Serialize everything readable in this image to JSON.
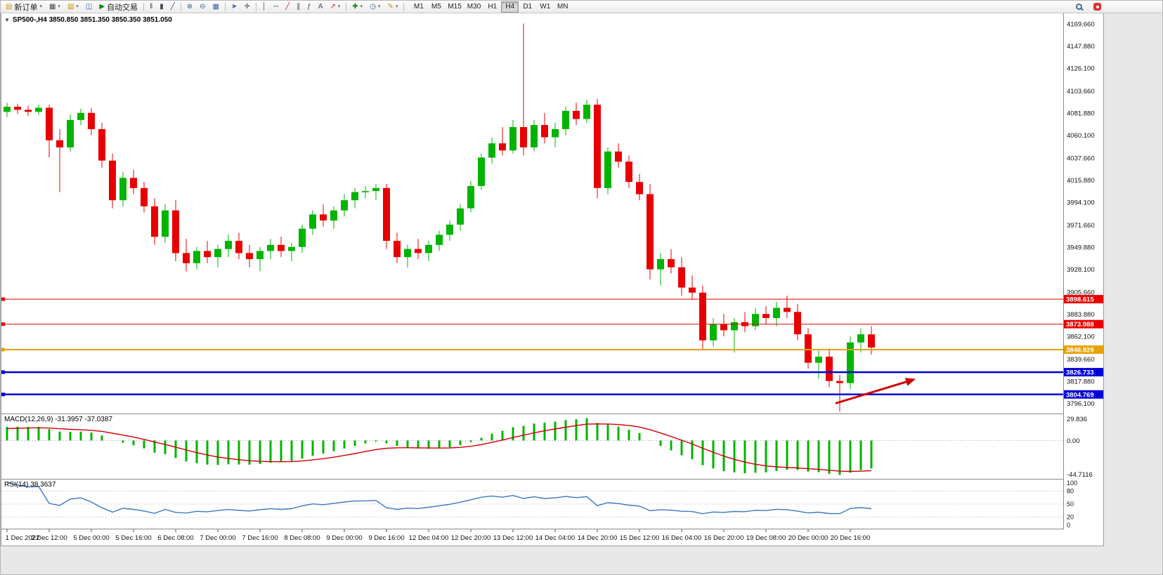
{
  "toolbar": {
    "new_order_label": "新订单",
    "auto_trading_label": "自动交易",
    "caret": "▾",
    "timeframes": [
      "M1",
      "M5",
      "M15",
      "M30",
      "H1",
      "H4",
      "D1",
      "W1",
      "MN"
    ],
    "active_timeframe": "H4"
  },
  "icons": {
    "collapse": "▼",
    "new_order": "▤",
    "new_chart": "▦",
    "profiles": "▧",
    "market_watch": "◫",
    "auto_trading_play": "▶",
    "bar_chart": "‖",
    "candlestick_chart": "▮",
    "line_chart": "╱",
    "zoom_in": "⊕",
    "zoom_out": "⊖",
    "tile_windows": "▦",
    "cursor": "➤",
    "crosshair": "✛",
    "vertical_line": "│",
    "horizontal_line": "─",
    "trendline": "╱",
    "channel": "∥",
    "fibonacci": "ƒ",
    "text_tool": "A",
    "arrows_tool": "↗",
    "indicators": "✚",
    "periods": "◷",
    "templates": "✎"
  },
  "chart": {
    "corner_label": "SP500-,H4 3850.850 3851.350 3850.350 3851.050"
  },
  "chart_data": {
    "type": "candlestick",
    "symbol": "SP500-",
    "timeframe": "H4",
    "current_bar": {
      "open": 3850.85,
      "high": 3851.35,
      "low": 3850.35,
      "close": 3851.05
    },
    "y_range": [
      3786,
      4180
    ],
    "price_axis_labels": [
      "4169.660",
      "4147.880",
      "4126.100",
      "4103.660",
      "4081.880",
      "4060.100",
      "4037.660",
      "4015.880",
      "3994.100",
      "3971.660",
      "3949.880",
      "3928.100",
      "3905.660",
      "3883.880",
      "3862.100",
      "3839.660",
      "3817.880",
      "3796.100"
    ],
    "time_axis_labels": [
      "1 Dec 2022",
      "2 Dec 12:00",
      "5 Dec 00:00",
      "5 Dec 16:00",
      "6 Dec 08:00",
      "7 Dec 00:00",
      "7 Dec 16:00",
      "8 Dec 08:00",
      "9 Dec 00:00",
      "9 Dec 16:00",
      "12 Dec 04:00",
      "12 Dec 20:00",
      "13 Dec 12:00",
      "14 Dec 04:00",
      "14 Dec 20:00",
      "15 Dec 12:00",
      "16 Dec 04:00",
      "16 Dec 20:00",
      "19 Dec 08:00",
      "20 Dec 00:00",
      "20 Dec 16:00"
    ],
    "label_every_n_bars": 4,
    "colors": {
      "up": "#00B400",
      "down": "#E80000",
      "background": "#FFFFFF"
    },
    "candles": [
      [
        4083,
        4092,
        4078,
        4088
      ],
      [
        4088,
        4091,
        4081,
        4085
      ],
      [
        4085,
        4089,
        4079,
        4083
      ],
      [
        4083,
        4090,
        4080,
        4087
      ],
      [
        4087,
        4090,
        4038,
        4055
      ],
      [
        4055,
        4066,
        4004,
        4048
      ],
      [
        4048,
        4080,
        4044,
        4075
      ],
      [
        4075,
        4086,
        4070,
        4082
      ],
      [
        4082,
        4087,
        4060,
        4066
      ],
      [
        4066,
        4072,
        4028,
        4035
      ],
      [
        4035,
        4042,
        3988,
        3996
      ],
      [
        3996,
        4024,
        3990,
        4018
      ],
      [
        4018,
        4026,
        4002,
        4008
      ],
      [
        4008,
        4014,
        3984,
        3990
      ],
      [
        3990,
        3998,
        3952,
        3960
      ],
      [
        3960,
        3992,
        3954,
        3986
      ],
      [
        3986,
        3996,
        3936,
        3944
      ],
      [
        3944,
        3958,
        3926,
        3934
      ],
      [
        3934,
        3950,
        3928,
        3946
      ],
      [
        3946,
        3956,
        3934,
        3940
      ],
      [
        3940,
        3952,
        3930,
        3948
      ],
      [
        3948,
        3962,
        3940,
        3956
      ],
      [
        3956,
        3964,
        3938,
        3944
      ],
      [
        3944,
        3952,
        3930,
        3938
      ],
      [
        3938,
        3950,
        3926,
        3946
      ],
      [
        3946,
        3958,
        3938,
        3952
      ],
      [
        3952,
        3960,
        3940,
        3946
      ],
      [
        3946,
        3954,
        3936,
        3950
      ],
      [
        3950,
        3972,
        3944,
        3968
      ],
      [
        3968,
        3986,
        3962,
        3982
      ],
      [
        3982,
        3992,
        3970,
        3976
      ],
      [
        3976,
        3990,
        3968,
        3986
      ],
      [
        3986,
        4002,
        3980,
        3996
      ],
      [
        3996,
        4008,
        3988,
        4004
      ],
      [
        4004,
        4010,
        3998,
        4005
      ],
      [
        4005,
        4012,
        3996,
        4008
      ],
      [
        4008,
        4012,
        3948,
        3956
      ],
      [
        3956,
        3964,
        3934,
        3940
      ],
      [
        3940,
        3952,
        3930,
        3948
      ],
      [
        3948,
        3958,
        3938,
        3944
      ],
      [
        3944,
        3956,
        3936,
        3952
      ],
      [
        3952,
        3966,
        3946,
        3962
      ],
      [
        3962,
        3976,
        3956,
        3972
      ],
      [
        3972,
        3992,
        3966,
        3988
      ],
      [
        3988,
        4015,
        3984,
        4010
      ],
      [
        4010,
        4042,
        4006,
        4038
      ],
      [
        4038,
        4058,
        4032,
        4052
      ],
      [
        4052,
        4068,
        4040,
        4045
      ],
      [
        4045,
        4075,
        4042,
        4068
      ],
      [
        4068,
        4170,
        4040,
        4048
      ],
      [
        4048,
        4075,
        4044,
        4070
      ],
      [
        4070,
        4082,
        4052,
        4058
      ],
      [
        4058,
        4072,
        4048,
        4066
      ],
      [
        4066,
        4088,
        4060,
        4084
      ],
      [
        4084,
        4092,
        4070,
        4076
      ],
      [
        4076,
        4095,
        4072,
        4090
      ],
      [
        4090,
        4096,
        3998,
        4008
      ],
      [
        4008,
        4048,
        4002,
        4044
      ],
      [
        4044,
        4052,
        4028,
        4034
      ],
      [
        4034,
        4040,
        4008,
        4014
      ],
      [
        4014,
        4022,
        3996,
        4002
      ],
      [
        4002,
        4012,
        3918,
        3928
      ],
      [
        3928,
        3944,
        3912,
        3938
      ],
      [
        3938,
        3948,
        3924,
        3930
      ],
      [
        3930,
        3940,
        3902,
        3910
      ],
      [
        3910,
        3922,
        3898,
        3905
      ],
      [
        3905,
        3912,
        3848,
        3858
      ],
      [
        3858,
        3880,
        3852,
        3874
      ],
      [
        3874,
        3884,
        3862,
        3868
      ],
      [
        3868,
        3880,
        3846,
        3876
      ],
      [
        3876,
        3886,
        3866,
        3872
      ],
      [
        3872,
        3890,
        3868,
        3884
      ],
      [
        3884,
        3892,
        3874,
        3880
      ],
      [
        3880,
        3896,
        3872,
        3890
      ],
      [
        3890,
        3902,
        3880,
        3886
      ],
      [
        3886,
        3894,
        3858,
        3864
      ],
      [
        3864,
        3870,
        3830,
        3836
      ],
      [
        3836,
        3848,
        3820,
        3842
      ],
      [
        3842,
        3850,
        3812,
        3818
      ],
      [
        3818,
        3824,
        3788,
        3816
      ],
      [
        3816,
        3862,
        3810,
        3856
      ],
      [
        3856,
        3870,
        3846,
        3864
      ],
      [
        3864,
        3872,
        3844,
        3851
      ]
    ],
    "levels": [
      {
        "price": 3898.615,
        "label": "3898.615",
        "color": "#E80000",
        "width": 1,
        "text_color": "#FFFFFF"
      },
      {
        "price": 3873.988,
        "label": "3873.988",
        "color": "#E80000",
        "width": 1,
        "text_color": "#FFFFFF"
      },
      {
        "price": 3848.929,
        "label": "3848.929",
        "color": "#E8A200",
        "width": 2,
        "text_color": "#FFFFFF"
      },
      {
        "price": 3826.733,
        "label": "3826.733",
        "color": "#0000D8",
        "width": 2.5,
        "text_color": "#FFFFFF"
      },
      {
        "price": 3804.769,
        "label": "3804.769",
        "color": "#0000D8",
        "width": 2.5,
        "text_color": "#FFFFFF"
      }
    ],
    "annotations": [
      {
        "type": "arrow",
        "color": "#D00000",
        "from": {
          "bar": 78.6,
          "price": 3796
        },
        "to": {
          "bar": 86.2,
          "price": 3820
        }
      }
    ]
  },
  "macd": {
    "label": "MACD(12,26,9) -31.3957 -37.0387",
    "params": [
      12,
      26,
      9
    ],
    "values": [
      -31.3957,
      -37.0387
    ],
    "scale_labels": [
      "29.836",
      "0.00",
      "-44.7116"
    ],
    "histogram_color": "#00B400",
    "signal_color": "#D00000"
  },
  "rsi": {
    "label": "RSI(14) 38.3637",
    "period": 14,
    "value": 38.3637,
    "scale_labels": [
      "100",
      "80",
      "50",
      "20",
      "0"
    ],
    "levels": [
      80,
      50,
      20
    ],
    "line_color": "#3A78C2"
  }
}
